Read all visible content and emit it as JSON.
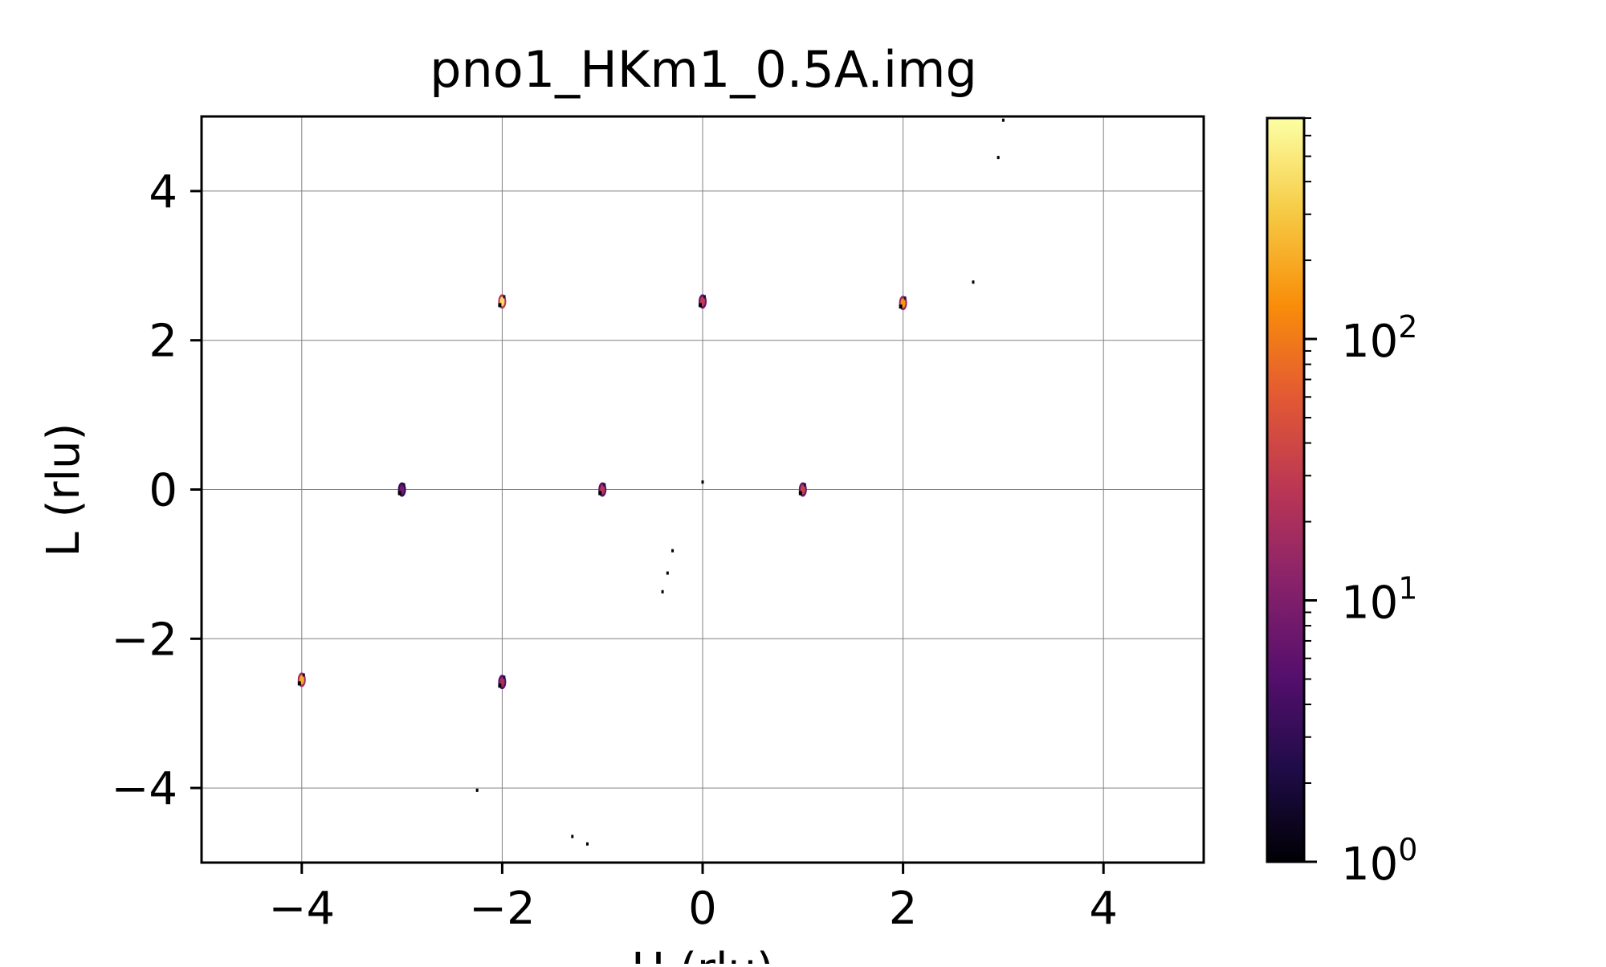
{
  "chart_data": {
    "type": "heatmap",
    "title": "pno1_HKm1_0.5A.img",
    "xlabel": "H (rlu)",
    "ylabel": "L (rlu)",
    "xlim": [
      -5,
      5
    ],
    "ylim": [
      -5,
      5
    ],
    "x_ticks": [
      -4,
      -2,
      0,
      2,
      4
    ],
    "y_ticks": [
      -4,
      -2,
      0,
      2,
      4
    ],
    "x_tick_labels": [
      "−4",
      "−2",
      "0",
      "2",
      "4"
    ],
    "y_tick_labels": [
      "−4",
      "−2",
      "0",
      "2",
      "4"
    ],
    "grid": true,
    "colormap": "inferno",
    "color_scale": "log",
    "color_range": [
      1,
      700
    ],
    "colorbar": {
      "ticks": [
        {
          "value": 1,
          "base": "10",
          "exponent": "0"
        },
        {
          "value": 10,
          "base": "10",
          "exponent": "1"
        },
        {
          "value": 100,
          "base": "10",
          "exponent": "2"
        }
      ]
    },
    "points": [
      {
        "h": -2.0,
        "l": 2.52,
        "intensity": 400
      },
      {
        "h": 0.0,
        "l": 2.52,
        "intensity": 30
      },
      {
        "h": 2.0,
        "l": 2.5,
        "intensity": 150
      },
      {
        "h": -3.0,
        "l": 0.0,
        "intensity": 8
      },
      {
        "h": -1.0,
        "l": 0.0,
        "intensity": 25
      },
      {
        "h": 0.0,
        "l": 0.1,
        "intensity": 1
      },
      {
        "h": 1.0,
        "l": 0.0,
        "intensity": 35
      },
      {
        "h": -4.0,
        "l": -2.55,
        "intensity": 200
      },
      {
        "h": -2.0,
        "l": -2.58,
        "intensity": 20
      },
      {
        "h": 3.0,
        "l": 4.95,
        "intensity": 1
      },
      {
        "h": 2.95,
        "l": 4.45,
        "intensity": 1
      },
      {
        "h": 2.7,
        "l": 2.78,
        "intensity": 1
      },
      {
        "h": -0.3,
        "l": -0.82,
        "intensity": 1
      },
      {
        "h": -0.35,
        "l": -1.12,
        "intensity": 1
      },
      {
        "h": -0.4,
        "l": -1.37,
        "intensity": 1
      },
      {
        "h": -2.25,
        "l": -4.03,
        "intensity": 1
      },
      {
        "h": -1.3,
        "l": -4.65,
        "intensity": 1
      },
      {
        "h": -1.15,
        "l": -4.75,
        "intensity": 1
      }
    ]
  }
}
